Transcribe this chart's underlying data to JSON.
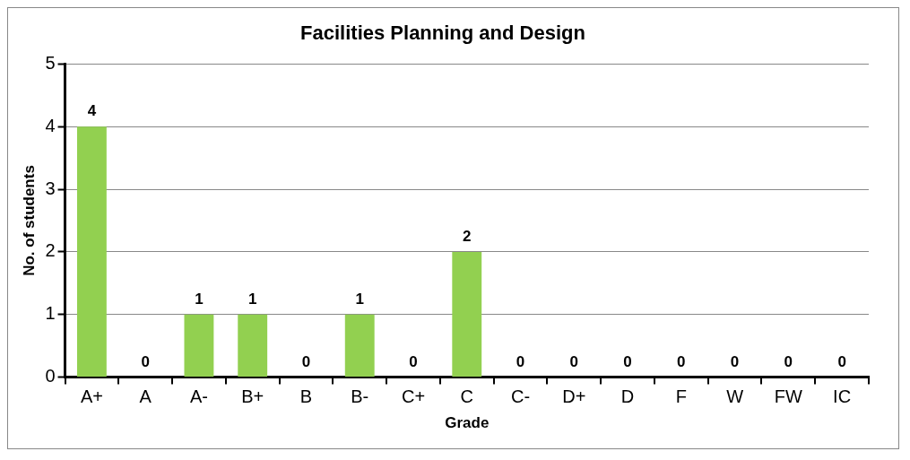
{
  "chart_data": {
    "type": "bar",
    "title": "Facilities Planning and Design",
    "xlabel": "Grade",
    "ylabel": "No. of students",
    "categories": [
      "A+",
      "A",
      "A-",
      "B+",
      "B",
      "B-",
      "C+",
      "C",
      "C-",
      "D+",
      "D",
      "F",
      "W",
      "FW",
      "IC"
    ],
    "values": [
      4,
      0,
      1,
      1,
      0,
      1,
      0,
      2,
      0,
      0,
      0,
      0,
      0,
      0,
      0
    ],
    "color": "#92d050",
    "ylim": [
      0,
      5
    ],
    "yticks": [
      0,
      1,
      2,
      3,
      4,
      5
    ],
    "grid": "y",
    "data_labels": true,
    "legend": false
  }
}
